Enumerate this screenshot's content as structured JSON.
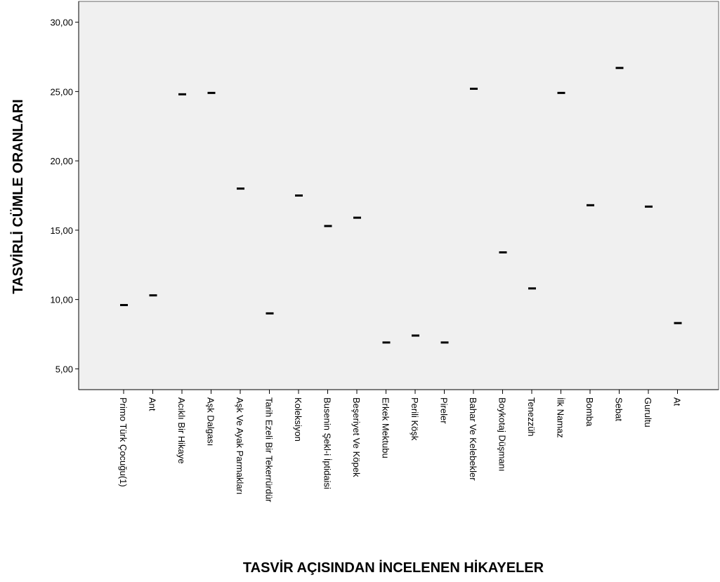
{
  "chart_data": {
    "type": "scatter",
    "title": "",
    "xlabel": "TASVİR AÇISINDAN İNCELENEN HİKAYELER",
    "ylabel": "TASVİRLİ CÜMLE ORANLARI",
    "ylim": [
      3.5,
      31.5
    ],
    "yticks": [
      5,
      10,
      15,
      20,
      25,
      30
    ],
    "ytick_labels": [
      "5,00",
      "10,00",
      "15,00",
      "20,00",
      "25,00",
      "30,00"
    ],
    "grid": false,
    "marker": "dash",
    "colors": {
      "plot_bg": "#f0f0f0",
      "marker": "#000000",
      "axis": "#000000",
      "frame": "#666666"
    },
    "categories": [
      "Primo Türk Çocuğu(1)",
      "Ant",
      "Acıklı Bir Hikaye",
      "Aşk Dalgası",
      "Aşk Ve Ayak Parmakları",
      "Tarih Ezeli Bir Tekerrürdür",
      "Koleksiyon",
      "Busenin Şekl-i İptidaisi",
      "Beşeriyet Ve Köpek",
      "Erkek Mektubu",
      "Perili Köşk",
      "Pireler",
      "Bahar Ve Kelebekler",
      "Boykotaj Düşmanı",
      "Tenezzüh",
      "İlk Namaz",
      "Bomba",
      "Sebat",
      "Gurultu",
      "At"
    ],
    "values": [
      9.6,
      10.3,
      24.8,
      24.9,
      18.0,
      9.0,
      17.5,
      15.3,
      15.9,
      6.9,
      7.4,
      6.9,
      25.2,
      13.4,
      10.8,
      24.9,
      16.8,
      26.7,
      16.7,
      8.3
    ]
  }
}
